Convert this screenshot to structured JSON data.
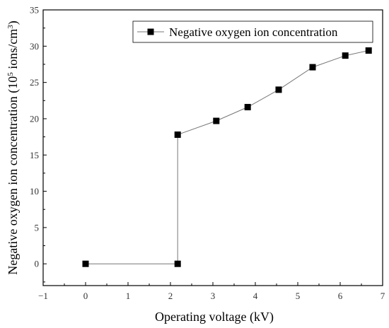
{
  "chart_data": {
    "type": "line",
    "title": "",
    "xlabel": "Operating voltage (kV)",
    "ylabel": {
      "prefix": "Negative oxygen ion concentration (10",
      "sup1": "5",
      "middle": " ions/cm",
      "sup2": "3",
      "suffix": ")"
    },
    "xlim": [
      -1,
      7
    ],
    "ylim": [
      -3,
      35
    ],
    "xticks": [
      -1,
      0,
      1,
      2,
      3,
      4,
      5,
      6,
      7
    ],
    "yticks": [
      0,
      5,
      10,
      15,
      20,
      25,
      30,
      35
    ],
    "grid": false,
    "legend_position": "top-right",
    "series": [
      {
        "name": "Negative oxygen ion concentration",
        "color": "#000000",
        "line_color": "#777777",
        "marker": "square",
        "x": [
          0,
          2.17,
          2.17,
          3.08,
          3.82,
          4.55,
          5.35,
          6.12,
          6.67
        ],
        "y": [
          0,
          0,
          17.8,
          19.7,
          21.6,
          24.0,
          27.1,
          28.7,
          29.4
        ]
      }
    ]
  }
}
